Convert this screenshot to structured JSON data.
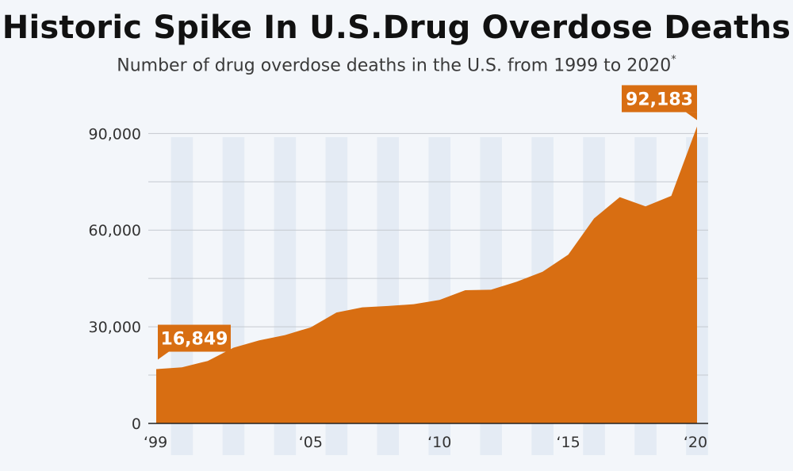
{
  "title": "Historic Spike In U.S.Drug Overdose Deaths",
  "subtitle": "Number of drug overdose deaths in the U.S. from 1999 to 2020",
  "subtitle_note_mark": "*",
  "colors": {
    "area": "#d86e12",
    "band": "#e4ebf4",
    "grid": "#c4c9cf",
    "background": "#f3f6fa"
  },
  "chart_data": {
    "type": "area",
    "x": [
      1999,
      2000,
      2001,
      2002,
      2003,
      2004,
      2005,
      2006,
      2007,
      2008,
      2009,
      2010,
      2011,
      2012,
      2013,
      2014,
      2015,
      2016,
      2017,
      2018,
      2019,
      2020
    ],
    "series": [
      {
        "values": [
          16849,
          17415,
          19394,
          23518,
          25785,
          27424,
          29813,
          34425,
          36010,
          36450,
          37004,
          38329,
          41340,
          41502,
          43982,
          47055,
          52404,
          63632,
          70237,
          67367,
          70630,
          92183
        ]
      }
    ],
    "title": "Historic Spike In U.S.Drug Overdose Deaths",
    "subtitle": "Number of drug overdose deaths in the U.S. from 1999 to 2020",
    "xlabel": "",
    "ylabel": "",
    "ylim": [
      0,
      95000
    ],
    "yticks": [
      0,
      30000,
      60000,
      90000
    ],
    "ytick_labels": [
      "0",
      "30,000",
      "60,000",
      "90,000"
    ],
    "xticks": [
      1999,
      2005,
      2010,
      2015,
      2020
    ],
    "xtick_labels": [
      "‘99",
      "‘05",
      "‘10",
      "‘15",
      "‘20"
    ],
    "grid": true,
    "callouts": [
      {
        "x": 1999,
        "label": "16,849"
      },
      {
        "x": 2020,
        "label": "92,183"
      }
    ]
  }
}
